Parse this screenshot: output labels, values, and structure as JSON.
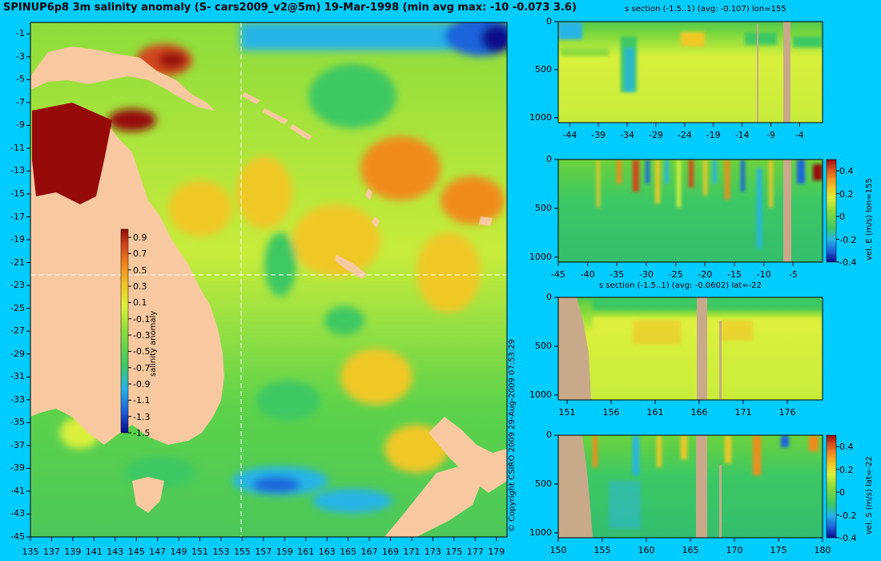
{
  "title": "SPINUP6p8 3m salinity anomaly (S- cars2009_v2@5m) 19-Mar-1998 (min avg max: -10 -0.073 3.6)",
  "copyright": "© Copyright CSIRO 2009   29-Aug-2009 07:53:29",
  "colors": {
    "background": "#00CCFF",
    "land": "#F8C9A0",
    "section_land": "#C8A98A",
    "colormap": [
      "#0A0A8C",
      "#1E64DC",
      "#28B4E6",
      "#3CC864",
      "#8CDC3C",
      "#DCF03C",
      "#F0C828",
      "#F08C1E",
      "#D2461E",
      "#960A0A"
    ]
  },
  "chart_data": [
    {
      "type": "heatmap",
      "name": "map",
      "title": "SPINUP6p8 3m salinity anomaly (S- cars2009_v2@5m) 19-Mar-1998 (min avg max: -10 -0.073 3.6)",
      "xlim": [
        135,
        180
      ],
      "ylim": [
        -45,
        0
      ],
      "x_ticks": [
        "135",
        "137",
        "139",
        "141",
        "143",
        "145",
        "147",
        "149",
        "151",
        "153",
        "155",
        "157",
        "159",
        "161",
        "163",
        "165",
        "167",
        "169",
        "171",
        "173",
        "175",
        "177",
        "179"
      ],
      "y_ticks": [
        "-1",
        "-3",
        "-5",
        "-7",
        "-9",
        "-11",
        "-13",
        "-15",
        "-17",
        "-19",
        "-21",
        "-23",
        "-25",
        "-27",
        "-29",
        "-31",
        "-33",
        "-35",
        "-37",
        "-39",
        "-41",
        "-43",
        "-45"
      ],
      "crosshair": {
        "lon": 155,
        "lat": -22
      },
      "colorbar": {
        "label": "salinity anomaly",
        "ticks": [
          "0.9",
          "0.7",
          "0.5",
          "0.3",
          "0.1",
          "-0.1",
          "-0.3",
          "-0.5",
          "-0.7",
          "-0.9",
          "-1.1",
          "-1.3",
          "-1.5"
        ],
        "range": [
          -1.5,
          1.0
        ]
      }
    },
    {
      "type": "heatmap",
      "name": "salinity-section-lon155",
      "title": "s section (-1.5..1) (avg: -0.107) lon=155",
      "xlim": [
        -46,
        0
      ],
      "ylim": [
        1050,
        0
      ],
      "x_ticks": [
        "-44",
        "-39",
        "-34",
        "-29",
        "-24",
        "-19",
        "-14",
        "-9",
        "-4"
      ],
      "y_ticks": [
        "0",
        "500",
        "1000"
      ]
    },
    {
      "type": "heatmap",
      "name": "vel-east-section-lon155",
      "title": "",
      "xlim": [
        -45,
        0
      ],
      "ylim": [
        1050,
        0
      ],
      "x_ticks": [
        "-45",
        "-40",
        "-35",
        "-30",
        "-25",
        "-20",
        "-15",
        "-10",
        "-5"
      ],
      "y_ticks": [
        "0",
        "500",
        "1000"
      ],
      "colorbar": {
        "label": "vel. E (m/s) lon=155",
        "ticks": [
          "0.4",
          "0.2",
          "0",
          "-0.2",
          "-0.4"
        ],
        "range": [
          -0.4,
          0.5
        ]
      }
    },
    {
      "type": "heatmap",
      "name": "salinity-section-lat-22",
      "title": "s section (-1.5..1) (avg: -0.0602) lat=-22",
      "xlim": [
        150,
        180
      ],
      "ylim": [
        1050,
        0
      ],
      "x_ticks": [
        "151",
        "156",
        "161",
        "166",
        "171",
        "176"
      ],
      "y_ticks": [
        "0",
        "500",
        "1000"
      ]
    },
    {
      "type": "heatmap",
      "name": "vel-south-section-lat-22",
      "title": "",
      "xlim": [
        150,
        180
      ],
      "ylim": [
        1050,
        0
      ],
      "x_ticks": [
        "150",
        "155",
        "160",
        "165",
        "170",
        "175",
        "180"
      ],
      "y_ticks": [
        "0",
        "500",
        "1000"
      ],
      "colorbar": {
        "label": "vel. S (m/s) lat=-22",
        "ticks": [
          "0.4",
          "0.2",
          "0",
          "-0.2",
          "-0.4"
        ],
        "range": [
          -0.4,
          0.5
        ]
      }
    }
  ]
}
